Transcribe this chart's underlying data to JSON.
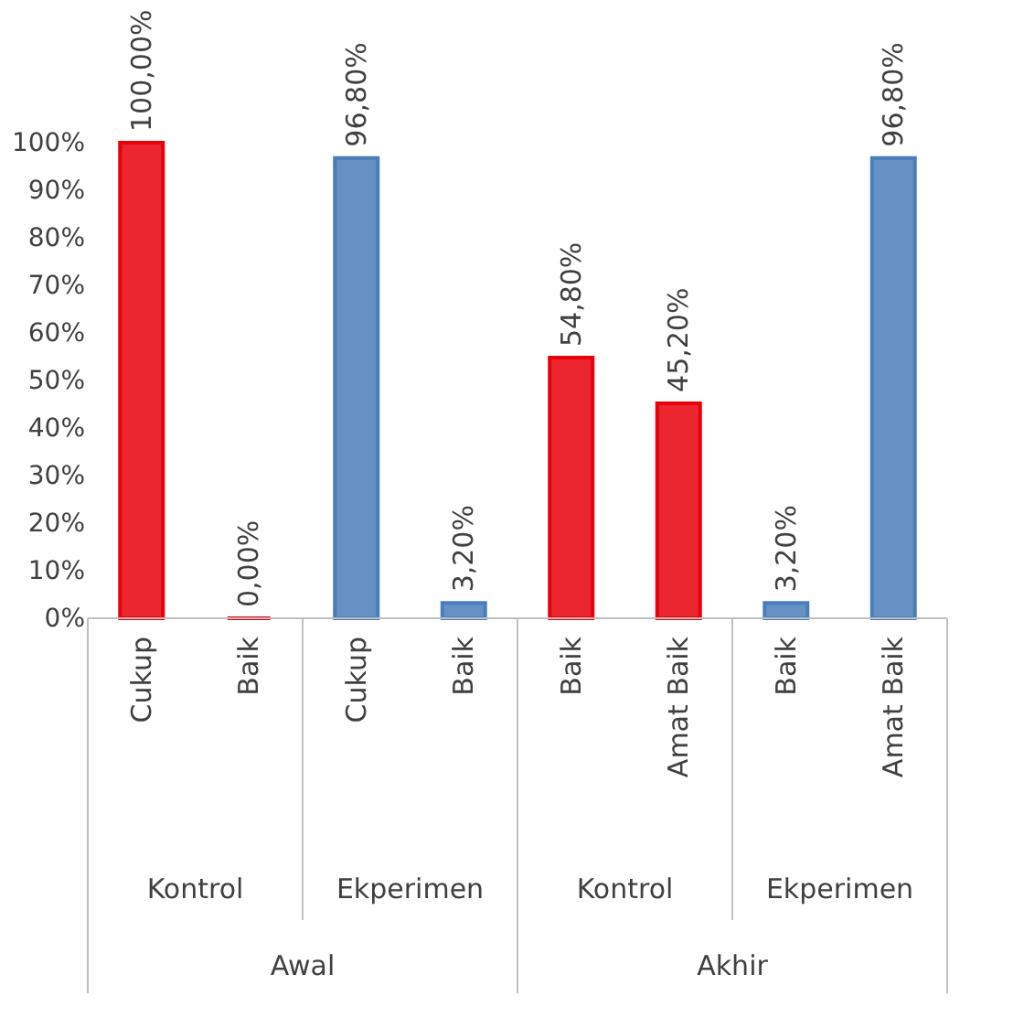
{
  "chart_data": {
    "type": "bar",
    "categories": [
      "Cukup",
      "Baik",
      "Cukup",
      "Baik",
      "Baik",
      "Amat Baik",
      "Baik",
      "Amat Baik"
    ],
    "series": [
      {
        "color": "#e8000b",
        "values": [
          100,
          0,
          null,
          null,
          54.8,
          45.2,
          null,
          null
        ],
        "value_labels": [
          "100,00%",
          "0,00%",
          null,
          null,
          "54,80%",
          "45,20%",
          null,
          null
        ]
      },
      {
        "color": "#4a7ebb",
        "values": [
          null,
          null,
          96.8,
          3.2,
          null,
          null,
          3.2,
          96.8
        ],
        "value_labels": [
          null,
          null,
          "96,80%",
          "3,20%",
          null,
          null,
          "3,20%",
          "96,80%"
        ]
      }
    ],
    "annotations": [
      "Kontrol",
      "Ekperimen",
      "Kontrol",
      "Ekperimen",
      "Awal",
      "Akhir"
    ],
    "ylim": [
      0,
      100
    ],
    "yticks": [
      {
        "value": 0,
        "label": "0%"
      },
      {
        "value": 10,
        "label": "10%"
      },
      {
        "value": 20,
        "label": "20%"
      },
      {
        "value": 30,
        "label": "30%"
      },
      {
        "value": 40,
        "label": "40%"
      },
      {
        "value": 50,
        "label": "50%"
      },
      {
        "value": 60,
        "label": "60%"
      },
      {
        "value": 70,
        "label": "70%"
      },
      {
        "value": 80,
        "label": "80%"
      },
      {
        "value": 90,
        "label": "90%"
      },
      {
        "value": 100,
        "label": "100%"
      }
    ],
    "grid": false
  }
}
